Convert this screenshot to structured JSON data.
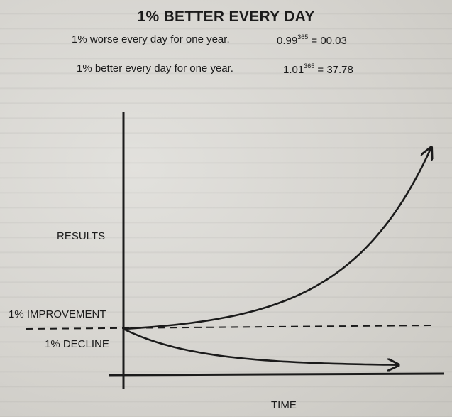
{
  "chart_data": {
    "type": "line",
    "title": "1% BETTER EVERY DAY",
    "subtitle_lines": [
      {
        "text": "1% worse every day for one year.",
        "base": "0.99",
        "exponent": "365",
        "result": "= 00.03"
      },
      {
        "text": "1% better every day for one year.",
        "base": "1.01",
        "exponent": "365",
        "result": "= 37.78"
      }
    ],
    "xlabel": "TIME",
    "ylabel": "RESULTS",
    "baseline_label_upper": "1% IMPROVEMENT",
    "baseline_label_lower": "1% DECLINE",
    "baseline_style": "dashed",
    "grid": false,
    "xlim": [
      0,
      365
    ],
    "series": [
      {
        "name": "1% IMPROVEMENT",
        "rate": 1.01,
        "start": 1,
        "end": 37.78
      },
      {
        "name": "1% DECLINE",
        "rate": 0.99,
        "start": 1,
        "end": 0.03
      }
    ]
  }
}
